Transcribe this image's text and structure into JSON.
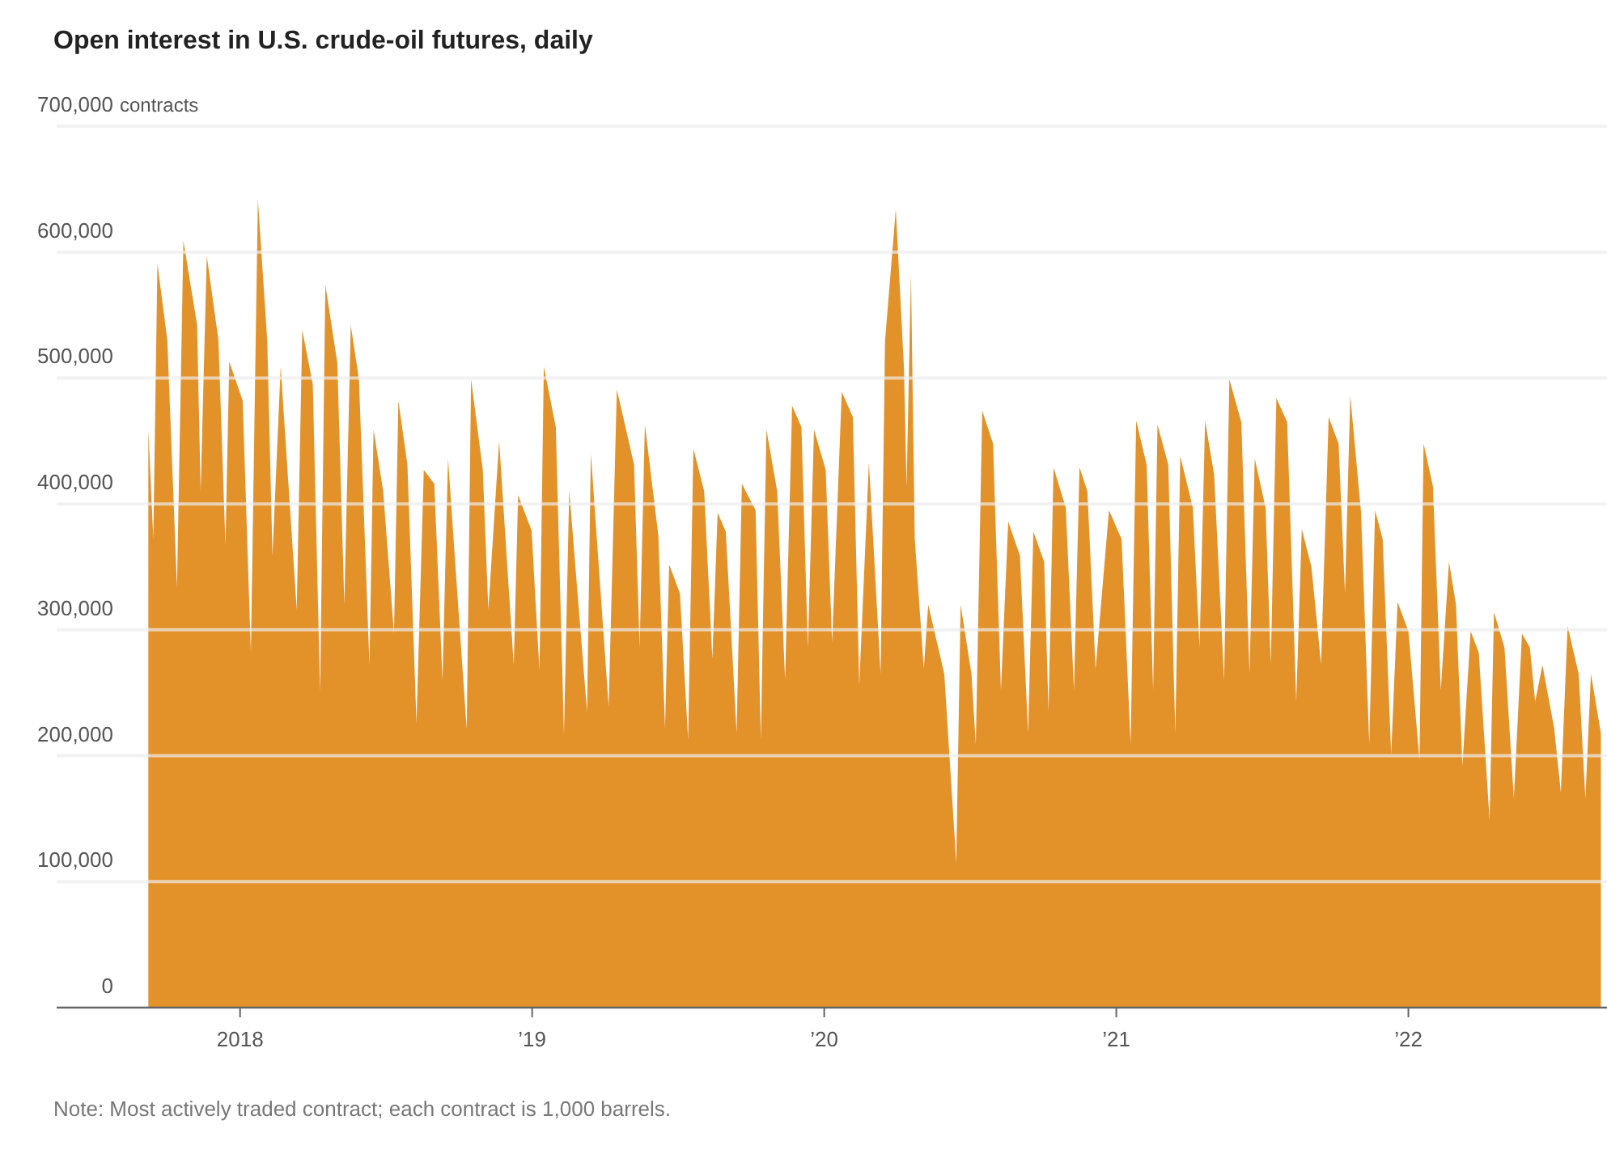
{
  "chart_data": {
    "type": "area",
    "title": "Open interest in U.S. crude-oil futures, daily",
    "annotations": [
      "Note: Most actively traded contract; each contract is 1,000 barrels."
    ],
    "color": "#e3922a",
    "grid": "y",
    "xlim": [
      2017.372,
      2022.68
    ],
    "ylabel": "contracts",
    "xticks": [
      {
        "value": 2018,
        "label": "2018"
      },
      {
        "value": 2019,
        "label": "’19"
      },
      {
        "value": 2020,
        "label": "’20"
      },
      {
        "value": 2021,
        "label": "’21"
      },
      {
        "value": 2022,
        "label": "’22"
      }
    ],
    "ylim": [
      0,
      700000
    ],
    "yticks": [
      {
        "value": 0,
        "label": "0"
      },
      {
        "value": 100000,
        "label": "100,000"
      },
      {
        "value": 200000,
        "label": "200,000"
      },
      {
        "value": 300000,
        "label": "300,000"
      },
      {
        "value": 400000,
        "label": "400,000"
      },
      {
        "value": 500000,
        "label": "500,000"
      },
      {
        "value": 600000,
        "label": "600,000"
      },
      {
        "value": 700000,
        "label": "700,000"
      }
    ],
    "x": [
      2017.686,
      2017.703,
      2017.717,
      2017.751,
      2017.784,
      2017.806,
      2017.853,
      2017.865,
      2017.886,
      2017.926,
      2017.95,
      2017.963,
      2018.009,
      2018.037,
      2018.061,
      2018.093,
      2018.111,
      2018.139,
      2018.194,
      2018.213,
      2018.249,
      2018.274,
      2018.292,
      2018.333,
      2018.357,
      2018.379,
      2018.407,
      2018.443,
      2018.457,
      2018.49,
      2018.527,
      2018.542,
      2018.573,
      2018.604,
      2018.629,
      2018.665,
      2018.693,
      2018.712,
      2018.776,
      2018.791,
      2018.831,
      2018.85,
      2018.887,
      2018.937,
      2018.952,
      2018.998,
      2019.025,
      2019.04,
      2019.081,
      2019.109,
      2019.127,
      2019.188,
      2019.201,
      2019.262,
      2019.29,
      2019.349,
      2019.368,
      2019.386,
      2019.432,
      2019.455,
      2019.469,
      2019.506,
      2019.534,
      2019.552,
      2019.589,
      2019.617,
      2019.635,
      2019.663,
      2019.7,
      2019.718,
      2019.765,
      2019.783,
      2019.802,
      2019.839,
      2019.866,
      2019.89,
      2019.922,
      2019.944,
      2019.965,
      2020.005,
      2020.027,
      2020.06,
      2020.098,
      2020.12,
      2020.153,
      2020.193,
      2020.208,
      2020.245,
      2020.273,
      2020.282,
      2020.297,
      2020.31,
      2020.341,
      2020.356,
      2020.411,
      2020.452,
      2020.467,
      2020.504,
      2020.519,
      2020.541,
      2020.578,
      2020.605,
      2020.63,
      2020.67,
      2020.698,
      2020.716,
      2020.753,
      2020.768,
      2020.785,
      2020.827,
      2020.855,
      2020.874,
      2020.901,
      2020.929,
      2020.975,
      2021.018,
      2021.049,
      2021.068,
      2021.104,
      2021.126,
      2021.141,
      2021.178,
      2021.202,
      2021.219,
      2021.262,
      2021.285,
      2021.304,
      2021.335,
      2021.369,
      2021.387,
      2021.428,
      2021.456,
      2021.474,
      2021.511,
      2021.529,
      2021.548,
      2021.585,
      2021.616,
      2021.635,
      2021.668,
      2021.701,
      2021.727,
      2021.761,
      2021.783,
      2021.801,
      2021.838,
      2021.866,
      2021.886,
      2021.912,
      2021.941,
      2021.963,
      2022.0,
      2022.038,
      2022.052,
      2022.084,
      2022.111,
      2022.139,
      2022.163,
      2022.185,
      2022.213,
      2022.241,
      2022.278,
      2022.293,
      2022.329,
      2022.361,
      2022.389,
      2022.416,
      2022.434,
      2022.459,
      2022.499,
      2022.522,
      2022.545,
      2022.583,
      2022.606,
      2022.625,
      2022.659
    ],
    "values": [
      459000,
      372000,
      591000,
      530000,
      334000,
      609000,
      542000,
      410000,
      597000,
      530000,
      367000,
      513000,
      482000,
      282000,
      642000,
      530000,
      359000,
      509000,
      316000,
      538000,
      495000,
      251000,
      574000,
      512000,
      320000,
      542000,
      499000,
      272000,
      459000,
      410000,
      297000,
      482000,
      431000,
      226000,
      427000,
      416000,
      260000,
      436000,
      221000,
      499000,
      427000,
      316000,
      450000,
      272000,
      407000,
      379000,
      268000,
      509000,
      461000,
      217000,
      411000,
      235000,
      440000,
      239000,
      491000,
      431000,
      286000,
      463000,
      375000,
      222000,
      352000,
      329000,
      213000,
      444000,
      410000,
      277000,
      393000,
      378000,
      218000,
      416000,
      395000,
      213000,
      459000,
      410000,
      260000,
      478000,
      461000,
      286000,
      459000,
      427000,
      290000,
      489000,
      469000,
      256000,
      433000,
      265000,
      529000,
      634000,
      508000,
      414000,
      583000,
      372000,
      269000,
      320000,
      265000,
      115000,
      320000,
      265000,
      209000,
      474000,
      448000,
      252000,
      386000,
      359000,
      218000,
      378000,
      354000,
      235000,
      429000,
      397000,
      252000,
      429000,
      410000,
      269000,
      395000,
      372000,
      209000,
      466000,
      431000,
      252000,
      463000,
      431000,
      218000,
      438000,
      397000,
      286000,
      466000,
      423000,
      260000,
      499000,
      465000,
      265000,
      436000,
      397000,
      273000,
      484000,
      465000,
      243000,
      380000,
      350000,
      273000,
      469000,
      448000,
      329000,
      486000,
      393000,
      209000,
      395000,
      372000,
      201000,
      322000,
      299000,
      197000,
      448000,
      414000,
      252000,
      354000,
      320000,
      192000,
      299000,
      282000,
      149000,
      314000,
      286000,
      166000,
      297000,
      286000,
      243000,
      272000,
      222000,
      171000,
      303000,
      265000,
      166000,
      265000,
      218000
    ]
  }
}
